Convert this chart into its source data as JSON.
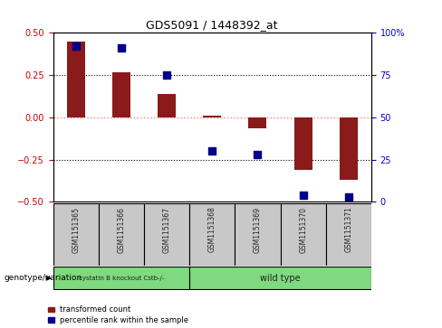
{
  "title": "GDS5091 / 1448392_at",
  "samples": [
    "GSM1151365",
    "GSM1151366",
    "GSM1151367",
    "GSM1151368",
    "GSM1151369",
    "GSM1151370",
    "GSM1151371"
  ],
  "red_bars": [
    0.45,
    0.265,
    0.14,
    0.01,
    -0.065,
    -0.31,
    -0.37
  ],
  "blue_dots_pct": [
    92,
    91,
    75,
    30,
    28,
    4,
    3
  ],
  "ylim_left": [
    -0.5,
    0.5
  ],
  "ylim_right": [
    0,
    100
  ],
  "yticks_left": [
    -0.5,
    -0.25,
    0.0,
    0.25,
    0.5
  ],
  "yticks_right": [
    0,
    25,
    50,
    75,
    100
  ],
  "hlines": [
    0.25,
    0.0,
    -0.25
  ],
  "groups": [
    {
      "label": "cystatin B knockout Cstb-/-",
      "n": 3,
      "color": "#7FD97F"
    },
    {
      "label": "wild type",
      "n": 4,
      "color": "#7FD97F"
    }
  ],
  "bar_color": "#8B1A1A",
  "dot_color": "#00008B",
  "bar_width": 0.4,
  "dot_size": 40,
  "bg_color": "#ffffff",
  "plot_bg": "#ffffff",
  "tick_label_color_left": "#CC0000",
  "tick_label_color_right": "#0000CC",
  "zero_line_color": "#FF8080",
  "dotted_line_color": "#000000",
  "sample_box_color": "#C8C8C8",
  "legend_red_label": "transformed count",
  "legend_blue_label": "percentile rank within the sample",
  "genotype_label": "genotype/variation"
}
